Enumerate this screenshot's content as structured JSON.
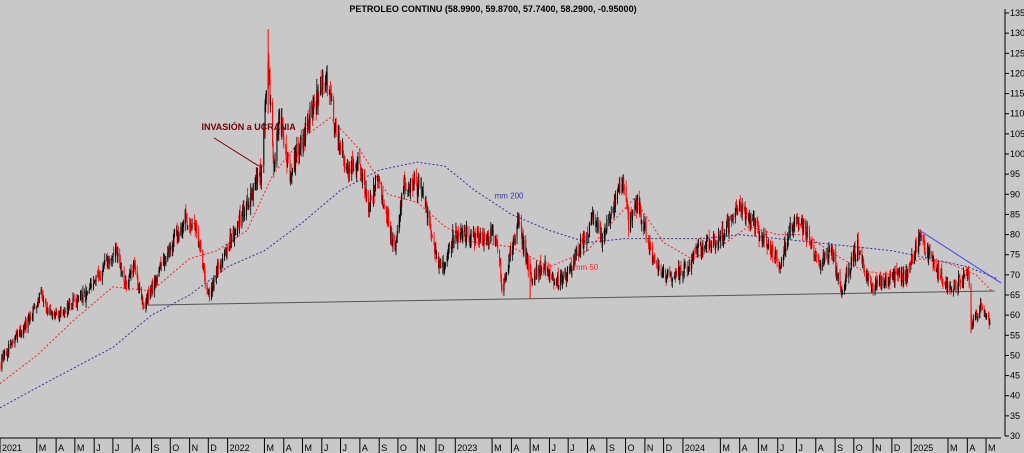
{
  "chart_data": {
    "type": "candlestick",
    "title": "PETROLEO CONTINU (58.9900, 59.8700, 57.7400, 58.2900, -0.95000)",
    "xlabel": "",
    "ylabel": "",
    "ylim": [
      30,
      135
    ],
    "y_ticks": [
      30,
      35,
      40,
      45,
      50,
      55,
      60,
      65,
      70,
      75,
      80,
      85,
      90,
      95,
      100,
      105,
      110,
      115,
      120,
      125,
      130,
      135
    ],
    "x_range": [
      "2021-01-01",
      "2025-05-25"
    ],
    "x_ticks": [
      {
        "date": "2021-01-01",
        "label": "2021"
      },
      {
        "date": "2021-03-01",
        "label": "M"
      },
      {
        "date": "2021-04-01",
        "label": "A"
      },
      {
        "date": "2021-05-01",
        "label": "M"
      },
      {
        "date": "2021-06-01",
        "label": "J"
      },
      {
        "date": "2021-07-01",
        "label": "J"
      },
      {
        "date": "2021-08-01",
        "label": "A"
      },
      {
        "date": "2021-09-01",
        "label": "S"
      },
      {
        "date": "2021-10-01",
        "label": "O"
      },
      {
        "date": "2021-11-01",
        "label": "N"
      },
      {
        "date": "2021-12-01",
        "label": "D"
      },
      {
        "date": "2022-01-01",
        "label": "2022"
      },
      {
        "date": "2022-03-01",
        "label": "M"
      },
      {
        "date": "2022-04-01",
        "label": "A"
      },
      {
        "date": "2022-05-01",
        "label": "M"
      },
      {
        "date": "2022-06-01",
        "label": "J"
      },
      {
        "date": "2022-07-01",
        "label": "J"
      },
      {
        "date": "2022-08-01",
        "label": "A"
      },
      {
        "date": "2022-09-01",
        "label": "S"
      },
      {
        "date": "2022-10-01",
        "label": "O"
      },
      {
        "date": "2022-11-01",
        "label": "N"
      },
      {
        "date": "2022-12-01",
        "label": "D"
      },
      {
        "date": "2023-01-01",
        "label": "2023"
      },
      {
        "date": "2023-03-01",
        "label": "M"
      },
      {
        "date": "2023-04-01",
        "label": "A"
      },
      {
        "date": "2023-05-01",
        "label": "M"
      },
      {
        "date": "2023-06-01",
        "label": "J"
      },
      {
        "date": "2023-07-01",
        "label": "J"
      },
      {
        "date": "2023-08-01",
        "label": "A"
      },
      {
        "date": "2023-09-01",
        "label": "S"
      },
      {
        "date": "2023-10-01",
        "label": "O"
      },
      {
        "date": "2023-11-01",
        "label": "N"
      },
      {
        "date": "2023-12-01",
        "label": "D"
      },
      {
        "date": "2024-01-01",
        "label": "2024"
      },
      {
        "date": "2024-03-01",
        "label": "M"
      },
      {
        "date": "2024-04-01",
        "label": "A"
      },
      {
        "date": "2024-05-01",
        "label": "M"
      },
      {
        "date": "2024-06-01",
        "label": "J"
      },
      {
        "date": "2024-07-01",
        "label": "J"
      },
      {
        "date": "2024-08-01",
        "label": "A"
      },
      {
        "date": "2024-09-01",
        "label": "S"
      },
      {
        "date": "2024-10-01",
        "label": "O"
      },
      {
        "date": "2024-11-01",
        "label": "N"
      },
      {
        "date": "2024-12-01",
        "label": "D"
      },
      {
        "date": "2025-01-01",
        "label": "2025"
      },
      {
        "date": "2025-03-01",
        "label": "M"
      },
      {
        "date": "2025-04-01",
        "label": "A"
      },
      {
        "date": "2025-05-01",
        "label": "M"
      }
    ],
    "price_series": {
      "up_color": "#000000",
      "down_color": "#ff0000",
      "points": [
        [
          "2021-01-01",
          48
        ],
        [
          "2021-01-20",
          53
        ],
        [
          "2021-02-15",
          58
        ],
        [
          "2021-03-08",
          66
        ],
        [
          "2021-03-25",
          59
        ],
        [
          "2021-04-20",
          62
        ],
        [
          "2021-05-20",
          65
        ],
        [
          "2021-06-10",
          70
        ],
        [
          "2021-07-06",
          76
        ],
        [
          "2021-07-20",
          67
        ],
        [
          "2021-08-05",
          72
        ],
        [
          "2021-08-20",
          62
        ],
        [
          "2021-09-10",
          70
        ],
        [
          "2021-10-01",
          77
        ],
        [
          "2021-10-25",
          84
        ],
        [
          "2021-11-10",
          82
        ],
        [
          "2021-12-02",
          65
        ],
        [
          "2021-12-15",
          71
        ],
        [
          "2022-01-10",
          80
        ],
        [
          "2022-02-01",
          88
        ],
        [
          "2022-02-25",
          96
        ],
        [
          "2022-03-07",
          124
        ],
        [
          "2022-03-16",
          95
        ],
        [
          "2022-03-25",
          110
        ],
        [
          "2022-04-11",
          95
        ],
        [
          "2022-04-25",
          102
        ],
        [
          "2022-05-15",
          110
        ],
        [
          "2022-06-08",
          120
        ],
        [
          "2022-06-20",
          108
        ],
        [
          "2022-07-14",
          95
        ],
        [
          "2022-07-29",
          98
        ],
        [
          "2022-08-16",
          87
        ],
        [
          "2022-08-29",
          94
        ],
        [
          "2022-09-26",
          77
        ],
        [
          "2022-10-10",
          92
        ],
        [
          "2022-11-07",
          92
        ],
        [
          "2022-11-28",
          77
        ],
        [
          "2022-12-09",
          71
        ],
        [
          "2022-12-30",
          80
        ],
        [
          "2023-01-27",
          80
        ],
        [
          "2023-02-15",
          79
        ],
        [
          "2023-03-08",
          80
        ],
        [
          "2023-03-17",
          67
        ],
        [
          "2023-04-12",
          83
        ],
        [
          "2023-05-03",
          69
        ],
        [
          "2023-05-22",
          73
        ],
        [
          "2023-06-12",
          68
        ],
        [
          "2023-06-27",
          70
        ],
        [
          "2023-07-20",
          77
        ],
        [
          "2023-08-10",
          84
        ],
        [
          "2023-08-23",
          79
        ],
        [
          "2023-09-27",
          93
        ],
        [
          "2023-10-06",
          83
        ],
        [
          "2023-10-20",
          88
        ],
        [
          "2023-11-16",
          73
        ],
        [
          "2023-12-12",
          69
        ],
        [
          "2024-01-10",
          72
        ],
        [
          "2024-01-29",
          77
        ],
        [
          "2024-02-27",
          79
        ],
        [
          "2024-04-05",
          87
        ],
        [
          "2024-04-25",
          82
        ],
        [
          "2024-05-14",
          78
        ],
        [
          "2024-06-04",
          73
        ],
        [
          "2024-06-20",
          81
        ],
        [
          "2024-07-05",
          84
        ],
        [
          "2024-07-22",
          79
        ],
        [
          "2024-08-06",
          72
        ],
        [
          "2024-08-27",
          76
        ],
        [
          "2024-09-10",
          66
        ],
        [
          "2024-10-07",
          77
        ],
        [
          "2024-10-28",
          67
        ],
        [
          "2024-11-20",
          69
        ],
        [
          "2024-12-26",
          70
        ],
        [
          "2025-01-15",
          80
        ],
        [
          "2025-02-04",
          73
        ],
        [
          "2025-03-05",
          66
        ],
        [
          "2025-04-02",
          71
        ],
        [
          "2025-04-09",
          57
        ],
        [
          "2025-04-24",
          63
        ],
        [
          "2025-05-07",
          58
        ]
      ]
    },
    "series": [
      {
        "name": "mm 50",
        "color": "#ff2222",
        "style": "dotted",
        "points": [
          [
            "2021-01-01",
            43
          ],
          [
            "2021-03-01",
            50
          ],
          [
            "2021-05-01",
            59
          ],
          [
            "2021-07-01",
            67
          ],
          [
            "2021-09-01",
            66
          ],
          [
            "2021-11-01",
            74
          ],
          [
            "2021-12-15",
            76
          ],
          [
            "2022-02-01",
            81
          ],
          [
            "2022-03-15",
            95
          ],
          [
            "2022-05-01",
            104
          ],
          [
            "2022-06-15",
            109
          ],
          [
            "2022-08-01",
            101
          ],
          [
            "2022-09-15",
            90
          ],
          [
            "2022-11-01",
            88
          ],
          [
            "2022-12-15",
            82
          ],
          [
            "2023-02-01",
            78
          ],
          [
            "2023-04-01",
            77
          ],
          [
            "2023-06-01",
            72
          ],
          [
            "2023-08-01",
            76
          ],
          [
            "2023-09-15",
            84
          ],
          [
            "2023-10-15",
            89
          ],
          [
            "2023-12-01",
            78
          ],
          [
            "2024-01-15",
            74
          ],
          [
            "2024-03-01",
            77
          ],
          [
            "2024-04-15",
            82
          ],
          [
            "2024-06-01",
            80
          ],
          [
            "2024-07-15",
            80
          ],
          [
            "2024-09-01",
            75
          ],
          [
            "2024-10-15",
            71
          ],
          [
            "2024-12-01",
            70
          ],
          [
            "2025-01-15",
            74
          ],
          [
            "2025-03-01",
            73
          ],
          [
            "2025-04-15",
            70
          ],
          [
            "2025-05-10",
            66
          ]
        ]
      },
      {
        "name": "mm 200",
        "color": "#3333aa",
        "style": "dotted",
        "points": [
          [
            "2021-01-01",
            37
          ],
          [
            "2021-03-01",
            42
          ],
          [
            "2021-05-01",
            47
          ],
          [
            "2021-07-01",
            52
          ],
          [
            "2021-09-01",
            60
          ],
          [
            "2021-11-01",
            65
          ],
          [
            "2022-01-01",
            72
          ],
          [
            "2022-03-01",
            76
          ],
          [
            "2022-05-01",
            83
          ],
          [
            "2022-07-01",
            91
          ],
          [
            "2022-09-01",
            96
          ],
          [
            "2022-11-01",
            98
          ],
          [
            "2022-12-15",
            97
          ],
          [
            "2023-02-01",
            91
          ],
          [
            "2023-04-01",
            85
          ],
          [
            "2023-06-01",
            81
          ],
          [
            "2023-08-01",
            78
          ],
          [
            "2023-10-01",
            79
          ],
          [
            "2023-12-01",
            79
          ],
          [
            "2024-02-01",
            79
          ],
          [
            "2024-04-01",
            80
          ],
          [
            "2024-06-01",
            79
          ],
          [
            "2024-08-01",
            78
          ],
          [
            "2024-10-01",
            77
          ],
          [
            "2024-12-01",
            76
          ],
          [
            "2025-02-01",
            74
          ],
          [
            "2025-04-01",
            72
          ],
          [
            "2025-05-20",
            69
          ]
        ]
      }
    ],
    "trendlines": [
      {
        "color": "#555555",
        "points": [
          [
            "2021-08-25",
            62.5
          ],
          [
            "2025-05-15",
            66
          ]
        ]
      },
      {
        "color": "#4444ff",
        "points": [
          [
            "2025-01-15",
            81
          ],
          [
            "2025-05-25",
            68
          ]
        ]
      },
      {
        "color": "#7a0000",
        "points": [
          [
            "2021-12-10",
            104
          ],
          [
            "2022-02-20",
            97
          ]
        ]
      }
    ],
    "annotations": [
      {
        "text": "INVASIÓN a UCRANIA",
        "date": "2021-11-20",
        "value": 106,
        "color": "#7a0000"
      },
      {
        "text": "mm 200",
        "date": "2023-03-05",
        "value": 89,
        "color": "#3333aa"
      },
      {
        "text": "mm 50",
        "date": "2023-07-10",
        "value": 71.2,
        "color": "#ff2222"
      }
    ],
    "grid": false,
    "legend": "none"
  }
}
